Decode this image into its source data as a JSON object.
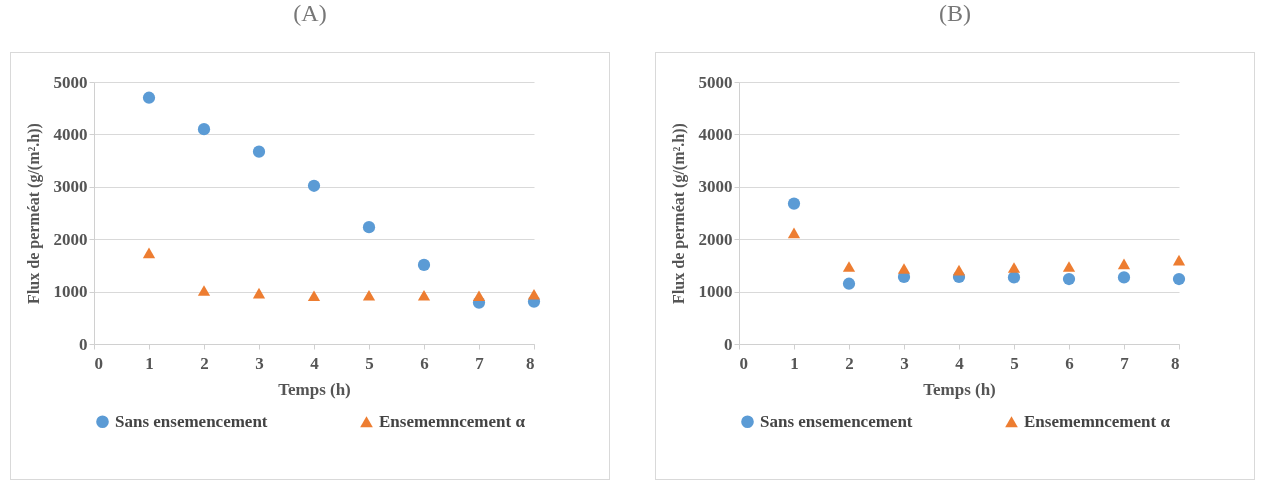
{
  "chart_data": [
    {
      "type": "scatter",
      "title": "(A)",
      "xlabel": "Temps (h)",
      "ylabel": "Flux de perméat (g/(m².h))",
      "x": [
        1,
        2,
        3,
        4,
        5,
        6,
        7,
        8
      ],
      "xlim": [
        0,
        8
      ],
      "xticks": [
        0,
        1,
        2,
        3,
        4,
        5,
        6,
        7,
        8
      ],
      "ylim": [
        0,
        5000
      ],
      "yticks": [
        0,
        1000,
        2000,
        3000,
        4000,
        5000
      ],
      "grid": "y",
      "legend": "bottom",
      "series": [
        {
          "name": "Sans ensemencement",
          "color": "#5b9bd5",
          "marker": "circle",
          "values": [
            4700,
            4100,
            3670,
            3020,
            2230,
            1510,
            790,
            810
          ]
        },
        {
          "name": "Ensememncement α",
          "color": "#ed7d31",
          "marker": "triangle",
          "values": [
            1740,
            1020,
            970,
            920,
            930,
            930,
            920,
            950
          ]
        }
      ]
    },
    {
      "type": "scatter",
      "title": "(B)",
      "xlabel": "Temps (h)",
      "ylabel": "Flux de perméat (g/(m².h))",
      "x": [
        1,
        2,
        3,
        4,
        5,
        6,
        7,
        8
      ],
      "xlim": [
        0,
        8
      ],
      "xticks": [
        0,
        1,
        2,
        3,
        4,
        5,
        6,
        7,
        8
      ],
      "ylim": [
        0,
        5000
      ],
      "yticks": [
        0,
        1000,
        2000,
        3000,
        4000,
        5000
      ],
      "grid": "y",
      "legend": "bottom",
      "series": [
        {
          "name": "Sans ensemencement",
          "color": "#5b9bd5",
          "marker": "circle",
          "values": [
            2680,
            1150,
            1280,
            1280,
            1270,
            1240,
            1270,
            1240
          ]
        },
        {
          "name": "Ensememncement α",
          "color": "#ed7d31",
          "marker": "triangle",
          "values": [
            2120,
            1480,
            1440,
            1410,
            1460,
            1480,
            1530,
            1600
          ]
        }
      ]
    }
  ]
}
